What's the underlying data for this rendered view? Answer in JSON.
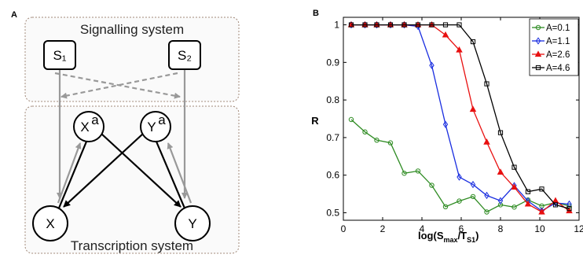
{
  "panel_a": {
    "letter": "A",
    "signalling_title": "Signalling system",
    "transcription_title": "Transcription system",
    "nodes": {
      "s1": "S₁",
      "s2": "S₂",
      "xa_base": "X",
      "xa_sup": "a",
      "ya_base": "Y",
      "ya_sup": "a",
      "x": "X",
      "y": "Y"
    },
    "colors": {
      "box_border": "#a08878",
      "gray_arrow": "#999999",
      "black_arrow": "#000000"
    }
  },
  "chart_data": {
    "type": "line",
    "panel_letter": "B",
    "xlabel_main": "log(S",
    "xlabel_sub1": "max",
    "xlabel_mid": "/T",
    "xlabel_sub2": "S",
    "xlabel_sub3": "1",
    "xlabel_close": ")",
    "ylabel": "R",
    "xlim": [
      0,
      12
    ],
    "ylim": [
      0.48,
      1.02
    ],
    "xticks": [
      "0",
      "2",
      "4",
      "6",
      "8",
      "10",
      "12"
    ],
    "yticks": [
      "0.5",
      "0.6",
      "0.7",
      "0.8",
      "0.9",
      "1"
    ],
    "grid": false,
    "legend_position": "top-right",
    "x": [
      0.4,
      1.1,
      1.7,
      2.4,
      3.1,
      3.8,
      4.5,
      5.2,
      5.9,
      6.6,
      7.3,
      8.0,
      8.7,
      9.4,
      10.1,
      10.8,
      11.5
    ],
    "series": [
      {
        "name": "A=0.1",
        "color": "#2e8b22",
        "marker": "circle",
        "values": [
          0.748,
          0.715,
          0.693,
          0.686,
          0.605,
          0.611,
          0.573,
          0.516,
          0.531,
          0.543,
          0.502,
          0.521,
          0.515,
          0.534,
          0.518,
          0.527,
          0.518
        ]
      },
      {
        "name": "A=1.1",
        "color": "#1a2ee0",
        "marker": "diamond",
        "values": [
          1.0,
          1.0,
          1.0,
          1.0,
          1.0,
          0.996,
          0.892,
          0.735,
          0.595,
          0.575,
          0.546,
          0.532,
          0.572,
          0.531,
          0.505,
          0.526,
          0.523
        ]
      },
      {
        "name": "A=2.6",
        "color": "#e81010",
        "marker": "triangle",
        "values": [
          1.0,
          1.0,
          1.0,
          1.0,
          1.0,
          1.0,
          1.0,
          0.973,
          0.933,
          0.775,
          0.688,
          0.608,
          0.568,
          0.523,
          0.502,
          0.532,
          0.505
        ]
      },
      {
        "name": "A=4.6",
        "color": "#000000",
        "marker": "square",
        "values": [
          1.0,
          1.0,
          1.0,
          1.0,
          1.0,
          1.0,
          1.0,
          1.0,
          1.0,
          0.955,
          0.843,
          0.713,
          0.621,
          0.556,
          0.563,
          0.521,
          0.511
        ]
      }
    ]
  }
}
